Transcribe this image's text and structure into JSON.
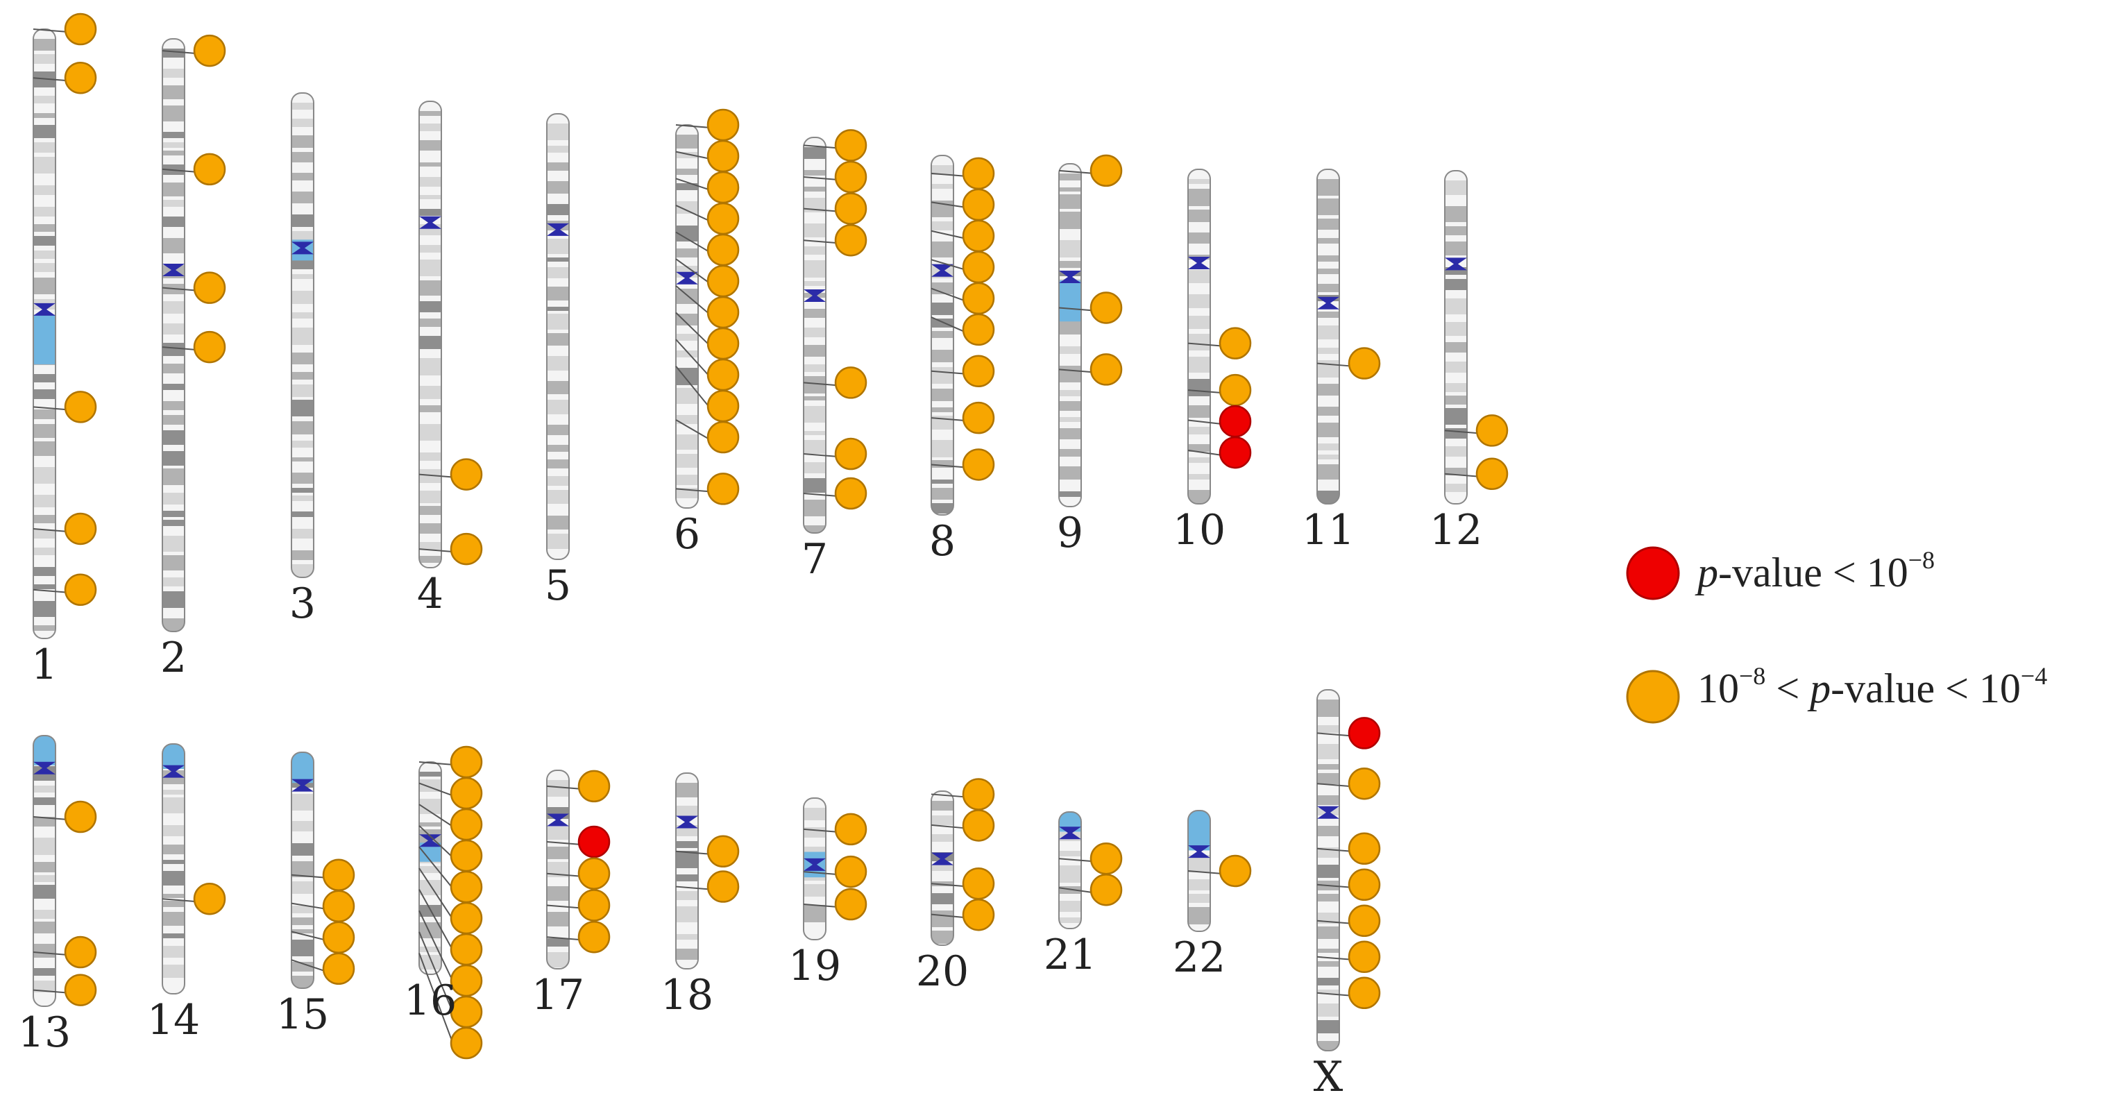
{
  "colors": {
    "significant": "#ee0000",
    "suggestive": "#f7a600",
    "centromere": "#2b2ba8",
    "heterochromatin": "#6fb5e0",
    "band_dark": "#8e8e8e",
    "band_mid": "#b2b2b2",
    "band_light": "#d6d6d6",
    "outline": "#888888"
  },
  "chromosomes": [
    {
      "id": "1",
      "label": "1",
      "row": 1,
      "hits": [
        {
          "pos": 0.0,
          "sig": "suggestive"
        },
        {
          "pos": 0.08,
          "sig": "suggestive"
        },
        {
          "pos": 0.62,
          "sig": "suggestive"
        },
        {
          "pos": 0.82,
          "sig": "suggestive"
        },
        {
          "pos": 0.92,
          "sig": "suggestive"
        }
      ]
    },
    {
      "id": "2",
      "label": "2",
      "row": 1,
      "hits": [
        {
          "pos": 0.02,
          "sig": "suggestive"
        },
        {
          "pos": 0.22,
          "sig": "suggestive"
        },
        {
          "pos": 0.42,
          "sig": "suggestive"
        },
        {
          "pos": 0.52,
          "sig": "suggestive"
        }
      ]
    },
    {
      "id": "3",
      "label": "3",
      "row": 1,
      "hits": []
    },
    {
      "id": "4",
      "label": "4",
      "row": 1,
      "hits": [
        {
          "pos": 0.8,
          "sig": "suggestive"
        },
        {
          "pos": 0.96,
          "sig": "suggestive"
        }
      ]
    },
    {
      "id": "5",
      "label": "5",
      "row": 1,
      "hits": []
    },
    {
      "id": "6",
      "label": "6",
      "row": 1,
      "hits": [
        {
          "pos": 0.0,
          "sig": "suggestive"
        },
        {
          "pos": 0.07,
          "sig": "suggestive"
        },
        {
          "pos": 0.14,
          "sig": "suggestive"
        },
        {
          "pos": 0.21,
          "sig": "suggestive"
        },
        {
          "pos": 0.28,
          "sig": "suggestive"
        },
        {
          "pos": 0.35,
          "sig": "suggestive"
        },
        {
          "pos": 0.42,
          "sig": "suggestive"
        },
        {
          "pos": 0.49,
          "sig": "suggestive"
        },
        {
          "pos": 0.56,
          "sig": "suggestive"
        },
        {
          "pos": 0.63,
          "sig": "suggestive"
        },
        {
          "pos": 0.77,
          "sig": "suggestive"
        },
        {
          "pos": 0.95,
          "sig": "suggestive"
        }
      ]
    },
    {
      "id": "7",
      "label": "7",
      "row": 1,
      "hits": [
        {
          "pos": 0.02,
          "sig": "suggestive"
        },
        {
          "pos": 0.1,
          "sig": "suggestive"
        },
        {
          "pos": 0.18,
          "sig": "suggestive"
        },
        {
          "pos": 0.26,
          "sig": "suggestive"
        },
        {
          "pos": 0.62,
          "sig": "suggestive"
        },
        {
          "pos": 0.8,
          "sig": "suggestive"
        },
        {
          "pos": 0.9,
          "sig": "suggestive"
        }
      ]
    },
    {
      "id": "8",
      "label": "8",
      "row": 1,
      "hits": [
        {
          "pos": 0.05,
          "sig": "suggestive"
        },
        {
          "pos": 0.13,
          "sig": "suggestive"
        },
        {
          "pos": 0.21,
          "sig": "suggestive"
        },
        {
          "pos": 0.29,
          "sig": "suggestive"
        },
        {
          "pos": 0.37,
          "sig": "suggestive"
        },
        {
          "pos": 0.45,
          "sig": "suggestive"
        },
        {
          "pos": 0.6,
          "sig": "suggestive"
        },
        {
          "pos": 0.73,
          "sig": "suggestive"
        },
        {
          "pos": 0.86,
          "sig": "suggestive"
        }
      ]
    },
    {
      "id": "9",
      "label": "9",
      "row": 1,
      "hits": [
        {
          "pos": 0.02,
          "sig": "suggestive"
        },
        {
          "pos": 0.42,
          "sig": "suggestive"
        },
        {
          "pos": 0.6,
          "sig": "suggestive"
        }
      ]
    },
    {
      "id": "10",
      "label": "10",
      "row": 1,
      "hits": [
        {
          "pos": 0.52,
          "sig": "suggestive"
        },
        {
          "pos": 0.66,
          "sig": "suggestive"
        },
        {
          "pos": 0.75,
          "sig": "significant"
        },
        {
          "pos": 0.84,
          "sig": "significant"
        }
      ]
    },
    {
      "id": "11",
      "label": "11",
      "row": 1,
      "hits": [
        {
          "pos": 0.58,
          "sig": "suggestive"
        }
      ]
    },
    {
      "id": "12",
      "label": "12",
      "row": 1,
      "hits": [
        {
          "pos": 0.78,
          "sig": "suggestive"
        },
        {
          "pos": 0.91,
          "sig": "suggestive"
        }
      ]
    },
    {
      "id": "13",
      "label": "13",
      "row": 2,
      "hits": [
        {
          "pos": 0.3,
          "sig": "suggestive"
        },
        {
          "pos": 0.8,
          "sig": "suggestive"
        },
        {
          "pos": 0.94,
          "sig": "suggestive"
        }
      ]
    },
    {
      "id": "14",
      "label": "14",
      "row": 2,
      "hits": [
        {
          "pos": 0.62,
          "sig": "suggestive"
        }
      ]
    },
    {
      "id": "15",
      "label": "15",
      "row": 2,
      "hits": [
        {
          "pos": 0.52,
          "sig": "suggestive"
        },
        {
          "pos": 0.64,
          "sig": "suggestive"
        },
        {
          "pos": 0.76,
          "sig": "suggestive"
        },
        {
          "pos": 0.88,
          "sig": "suggestive"
        }
      ]
    },
    {
      "id": "16",
      "label": "16",
      "row": 2,
      "hits": [
        {
          "pos": 0.0,
          "sig": "suggestive"
        },
        {
          "pos": 0.1,
          "sig": "suggestive"
        },
        {
          "pos": 0.2,
          "sig": "suggestive"
        },
        {
          "pos": 0.3,
          "sig": "suggestive"
        },
        {
          "pos": 0.4,
          "sig": "suggestive"
        },
        {
          "pos": 0.5,
          "sig": "suggestive"
        },
        {
          "pos": 0.6,
          "sig": "suggestive"
        },
        {
          "pos": 0.7,
          "sig": "suggestive"
        },
        {
          "pos": 0.8,
          "sig": "suggestive"
        },
        {
          "pos": 0.9,
          "sig": "suggestive"
        }
      ]
    },
    {
      "id": "17",
      "label": "17",
      "row": 2,
      "hits": [
        {
          "pos": 0.08,
          "sig": "suggestive"
        },
        {
          "pos": 0.36,
          "sig": "significant"
        },
        {
          "pos": 0.52,
          "sig": "suggestive"
        },
        {
          "pos": 0.68,
          "sig": "suggestive"
        },
        {
          "pos": 0.84,
          "sig": "suggestive"
        }
      ]
    },
    {
      "id": "18",
      "label": "18",
      "row": 2,
      "hits": [
        {
          "pos": 0.4,
          "sig": "suggestive"
        },
        {
          "pos": 0.58,
          "sig": "suggestive"
        }
      ]
    },
    {
      "id": "19",
      "label": "19",
      "row": 2,
      "hits": [
        {
          "pos": 0.22,
          "sig": "suggestive"
        },
        {
          "pos": 0.52,
          "sig": "suggestive"
        },
        {
          "pos": 0.75,
          "sig": "suggestive"
        }
      ]
    },
    {
      "id": "20",
      "label": "20",
      "row": 2,
      "hits": [
        {
          "pos": 0.02,
          "sig": "suggestive"
        },
        {
          "pos": 0.22,
          "sig": "suggestive"
        },
        {
          "pos": 0.6,
          "sig": "suggestive"
        },
        {
          "pos": 0.8,
          "sig": "suggestive"
        }
      ]
    },
    {
      "id": "21",
      "label": "21",
      "row": 2,
      "hits": [
        {
          "pos": 0.4,
          "sig": "suggestive"
        },
        {
          "pos": 0.65,
          "sig": "suggestive"
        }
      ]
    },
    {
      "id": "22",
      "label": "22",
      "row": 2,
      "hits": [
        {
          "pos": 0.5,
          "sig": "suggestive"
        }
      ]
    },
    {
      "id": "X",
      "label": "X",
      "row": 2,
      "hits": [
        {
          "pos": 0.12,
          "sig": "significant"
        },
        {
          "pos": 0.26,
          "sig": "suggestive"
        },
        {
          "pos": 0.44,
          "sig": "suggestive"
        },
        {
          "pos": 0.54,
          "sig": "suggestive"
        },
        {
          "pos": 0.64,
          "sig": "suggestive"
        },
        {
          "pos": 0.74,
          "sig": "suggestive"
        },
        {
          "pos": 0.84,
          "sig": "suggestive"
        }
      ]
    }
  ],
  "legend": [
    {
      "sig": "significant",
      "prefix": "",
      "p": "p",
      "value_text": "-value < 10",
      "exponent": "−8",
      "tail": "",
      "tail_exponent": ""
    },
    {
      "sig": "suggestive",
      "prefix": "10",
      "prefix_exponent": "−8",
      "p_prefix_text": " < ",
      "p": "p",
      "value_text": "-value < 10",
      "exponent": "−4",
      "tail": "",
      "tail_exponent": ""
    }
  ]
}
